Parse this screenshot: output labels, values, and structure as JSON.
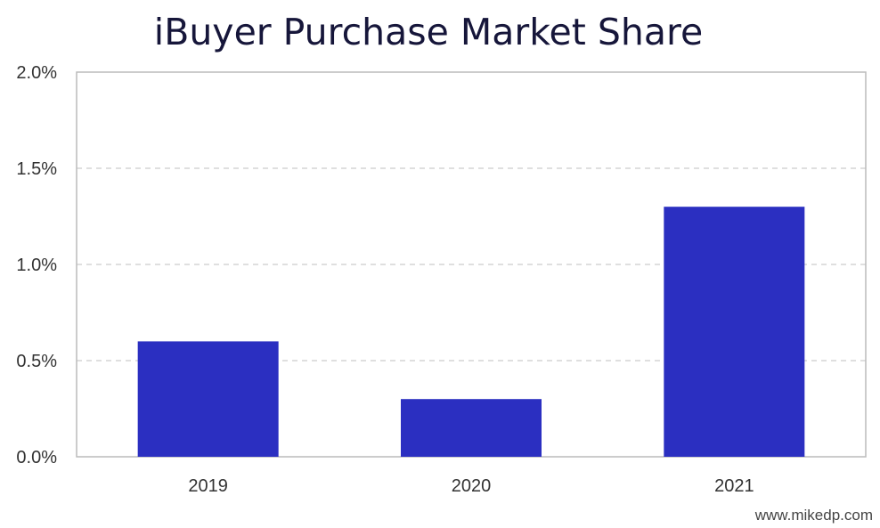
{
  "chart_data": {
    "type": "bar",
    "title": "iBuyer Purchase Market Share",
    "xlabel": "",
    "ylabel": "",
    "categories": [
      "2019",
      "2020",
      "2021"
    ],
    "values": [
      0.6,
      0.3,
      1.3
    ],
    "ylim": [
      0,
      2.0
    ],
    "yticks": [
      {
        "value": 0.0,
        "label": "0.0%"
      },
      {
        "value": 0.5,
        "label": "0.5%"
      },
      {
        "value": 1.0,
        "label": "1.0%"
      },
      {
        "value": 1.5,
        "label": "1.5%"
      },
      {
        "value": 2.0,
        "label": "2.0%"
      }
    ],
    "grid": "horizontal-dashed",
    "legend": "none",
    "bar_color": "#2b2fc1",
    "grid_color": "#cccccc",
    "axis_color": "#bbbbbb"
  },
  "credit": "www.mikedp.com"
}
